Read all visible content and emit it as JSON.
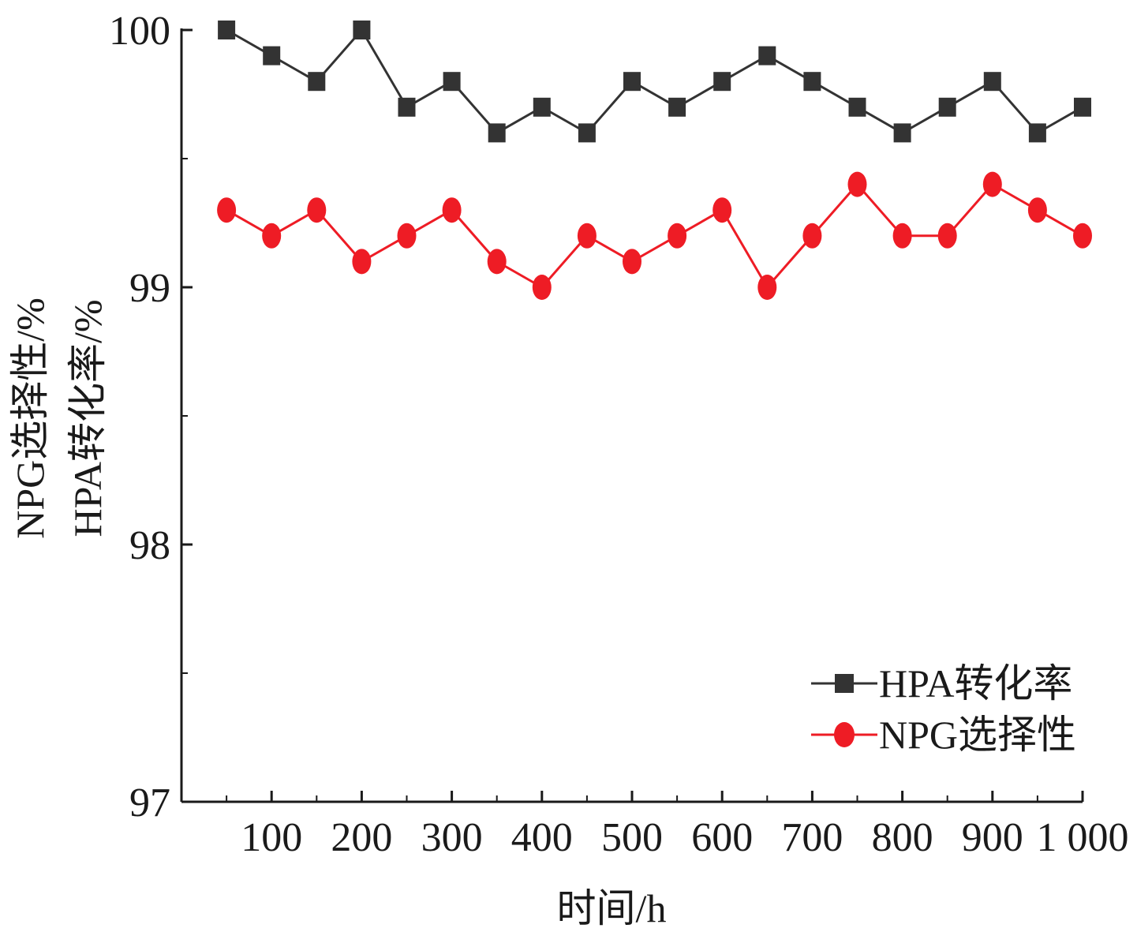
{
  "chart_data": {
    "type": "line",
    "xlabel": "时间/h",
    "ylabel_lines": [
      "NPG选择性/%",
      "HPA转化率/%"
    ],
    "x": [
      50,
      100,
      150,
      200,
      250,
      300,
      350,
      400,
      450,
      500,
      550,
      600,
      650,
      700,
      750,
      800,
      850,
      900,
      950,
      1000
    ],
    "x_ticks": [
      100,
      200,
      300,
      400,
      500,
      600,
      700,
      800,
      900,
      1000
    ],
    "x_tick_labels": [
      "100",
      "200",
      "300",
      "400",
      "500",
      "600",
      "700",
      "800",
      "900",
      "1 000"
    ],
    "y_ticks": [
      97,
      98,
      99,
      100
    ],
    "y_tick_labels": [
      "97",
      "98",
      "99",
      "100"
    ],
    "xlim": [
      0,
      1000
    ],
    "ylim": [
      97,
      100
    ],
    "grid": false,
    "legend_position": "bottom-right",
    "series": [
      {
        "name": "HPA转化率",
        "color": "#333333",
        "marker": "square",
        "values": [
          100.0,
          99.9,
          99.8,
          100.0,
          99.7,
          99.8,
          99.6,
          99.7,
          99.6,
          99.8,
          99.7,
          99.8,
          99.9,
          99.8,
          99.7,
          99.6,
          99.7,
          99.8,
          99.6,
          99.7
        ]
      },
      {
        "name": "NPG选择性",
        "color": "#ee1c25",
        "marker": "circle",
        "values": [
          99.3,
          99.2,
          99.3,
          99.1,
          99.2,
          99.3,
          99.1,
          99.0,
          99.2,
          99.1,
          99.2,
          99.3,
          99.0,
          99.2,
          99.4,
          99.2,
          99.2,
          99.4,
          99.3,
          99.2
        ]
      }
    ]
  }
}
